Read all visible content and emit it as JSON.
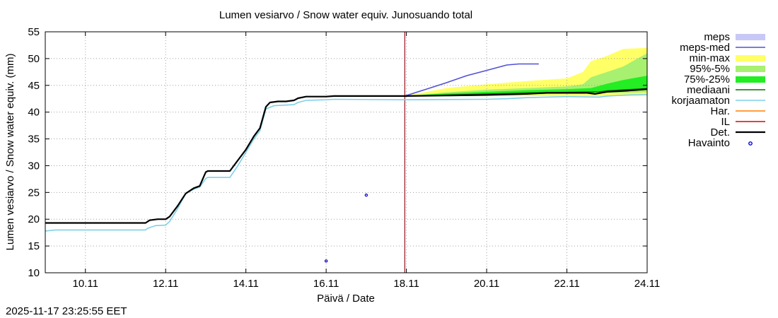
{
  "chart_data": {
    "type": "line",
    "title": "Lumen vesiarvo / Snow water equiv.  Junosuando total",
    "xlabel": "Päivä / Date",
    "ylabel": "Lumen vesiarvo / Snow water equiv. (mm)",
    "timestamp": "2025-11-17 23:25:55 EET",
    "x_unit": "days since 2025-11-09 00:00",
    "xlim": [
      0,
      15
    ],
    "ylim": [
      10,
      55
    ],
    "x_ticks": [
      {
        "x": 1,
        "label": "10.11"
      },
      {
        "x": 3,
        "label": "12.11"
      },
      {
        "x": 5,
        "label": "14.11"
      },
      {
        "x": 7,
        "label": "16.11"
      },
      {
        "x": 9,
        "label": "18.11"
      },
      {
        "x": 11,
        "label": "20.11"
      },
      {
        "x": 13,
        "label": "22.11"
      },
      {
        "x": 15,
        "label": "24.11"
      }
    ],
    "y_ticks": [
      10,
      15,
      20,
      25,
      30,
      35,
      40,
      45,
      50,
      55
    ],
    "grid": true,
    "forecast_start_x": 8.96,
    "legend": [
      {
        "label": "meps",
        "color": "#c8c8f8",
        "kind": "box"
      },
      {
        "label": "meps-med",
        "color": "#5050d8",
        "kind": "line"
      },
      {
        "label": "min-max",
        "color": "#ffff66",
        "kind": "box"
      },
      {
        "label": "95%-5%",
        "color": "#a8f070",
        "kind": "box"
      },
      {
        "label": "75%-25%",
        "color": "#22ee22",
        "kind": "box"
      },
      {
        "label": "mediaani",
        "color": "#007000",
        "kind": "line"
      },
      {
        "label": "korjaamaton",
        "color": "#7ed0e8",
        "kind": "line"
      },
      {
        "label": "Har.",
        "color": "#ff8000",
        "kind": "line"
      },
      {
        "label": "IL",
        "color": "#e00000",
        "kind": "line"
      },
      {
        "label": "Det.",
        "color": "#000000",
        "kind": "line"
      },
      {
        "label": "Havainto",
        "color": "#0000cc",
        "kind": "marker"
      }
    ],
    "bands": [
      {
        "name": "min-max",
        "color": "#ffff66",
        "x": [
          8.96,
          10,
          11,
          12,
          13,
          13.4,
          13.6,
          14,
          14.4,
          15
        ],
        "lower": [
          43,
          43,
          43,
          43,
          43,
          43,
          43,
          43,
          43,
          43
        ],
        "upper": [
          43,
          44.5,
          45.2,
          45.8,
          46.3,
          47.5,
          49.5,
          50.5,
          51.8,
          52
        ]
      },
      {
        "name": "95%-5%",
        "color": "#a8f070",
        "x": [
          8.96,
          10,
          11,
          12,
          13,
          13.4,
          13.6,
          14,
          14.4,
          15
        ],
        "lower": [
          43,
          43,
          43.2,
          43.3,
          43.4,
          43.4,
          43.5,
          43.6,
          43.6,
          43.7
        ],
        "upper": [
          43,
          43.7,
          44.2,
          44.5,
          44.8,
          45.2,
          46.5,
          47.5,
          48.5,
          51
        ]
      },
      {
        "name": "75%-25%",
        "color": "#22ee22",
        "x": [
          8.96,
          10,
          11,
          12,
          13,
          13.6,
          14,
          14.4,
          15
        ],
        "lower": [
          43,
          43.1,
          43.2,
          43.4,
          43.5,
          43.6,
          43.9,
          44,
          44.2
        ],
        "upper": [
          43,
          43.5,
          43.8,
          44.1,
          44.3,
          44.5,
          45.3,
          46,
          46.8
        ]
      }
    ],
    "series": [
      {
        "name": "korjaamaton",
        "color": "#7ed0e8",
        "width": 1.6,
        "points": [
          [
            0,
            17.8
          ],
          [
            0.25,
            18
          ],
          [
            2.5,
            18
          ],
          [
            2.55,
            18.3
          ],
          [
            2.75,
            18.8
          ],
          [
            3,
            18.9
          ],
          [
            3.1,
            19.6
          ],
          [
            3.3,
            22
          ],
          [
            3.5,
            24.8
          ],
          [
            3.7,
            25.6
          ],
          [
            3.85,
            26
          ],
          [
            4,
            27.6
          ],
          [
            4.05,
            27.8
          ],
          [
            4.6,
            27.8
          ],
          [
            4.8,
            30
          ],
          [
            5,
            32.5
          ],
          [
            5.2,
            35
          ],
          [
            5.35,
            36.5
          ],
          [
            5.5,
            40.6
          ],
          [
            5.7,
            41.2
          ],
          [
            6.2,
            41.4
          ],
          [
            6.3,
            41.8
          ],
          [
            6.5,
            42.2
          ],
          [
            7,
            42.3
          ],
          [
            7.2,
            42.4
          ],
          [
            9,
            42.3
          ],
          [
            11,
            42.4
          ],
          [
            11.5,
            42.5
          ],
          [
            12,
            42.7
          ],
          [
            12.5,
            42.8
          ],
          [
            13,
            42.9
          ],
          [
            13.8,
            42.8
          ],
          [
            14,
            43
          ],
          [
            14.5,
            43.2
          ],
          [
            15,
            43.3
          ]
        ]
      },
      {
        "name": "meps-med",
        "color": "#5050d8",
        "width": 1.6,
        "points": [
          [
            8.96,
            43
          ],
          [
            9.5,
            44.3
          ],
          [
            10,
            45.5
          ],
          [
            10.5,
            46.8
          ],
          [
            11,
            47.8
          ],
          [
            11.5,
            48.8
          ],
          [
            11.8,
            49
          ],
          [
            12.3,
            49
          ]
        ]
      },
      {
        "name": "mediaani",
        "color": "#007000",
        "width": 1.4,
        "points": [
          [
            8.96,
            43
          ],
          [
            10,
            43.2
          ],
          [
            11,
            43.4
          ],
          [
            12,
            43.6
          ],
          [
            13,
            43.7
          ],
          [
            13.8,
            43.8
          ],
          [
            14,
            44
          ],
          [
            14.5,
            44.2
          ],
          [
            15,
            44.4
          ]
        ]
      },
      {
        "name": "Det.",
        "color": "#000000",
        "width": 2.2,
        "points": [
          [
            0,
            19.3
          ],
          [
            2.5,
            19.3
          ],
          [
            2.6,
            19.8
          ],
          [
            2.8,
            20
          ],
          [
            3,
            20
          ],
          [
            3.1,
            20.5
          ],
          [
            3.3,
            22.5
          ],
          [
            3.5,
            24.8
          ],
          [
            3.7,
            25.8
          ],
          [
            3.85,
            26.2
          ],
          [
            4,
            28.8
          ],
          [
            4.05,
            29
          ],
          [
            4.6,
            29
          ],
          [
            4.8,
            31
          ],
          [
            5,
            33
          ],
          [
            5.2,
            35.5
          ],
          [
            5.35,
            37
          ],
          [
            5.5,
            41
          ],
          [
            5.6,
            41.8
          ],
          [
            5.8,
            42
          ],
          [
            6,
            42
          ],
          [
            6.2,
            42.2
          ],
          [
            6.3,
            42.6
          ],
          [
            6.5,
            42.9
          ],
          [
            7,
            42.9
          ],
          [
            7.2,
            43
          ],
          [
            8.96,
            43
          ],
          [
            10,
            43.1
          ],
          [
            11,
            43.2
          ],
          [
            11.5,
            43.3
          ],
          [
            12,
            43.4
          ],
          [
            12.5,
            43.6
          ],
          [
            13,
            43.6
          ],
          [
            13.5,
            43.6
          ],
          [
            13.7,
            43.4
          ],
          [
            14,
            43.8
          ],
          [
            14.5,
            44
          ],
          [
            15,
            44.3
          ]
        ]
      }
    ],
    "observations": [
      [
        7,
        12.2
      ],
      [
        8,
        24.5
      ]
    ]
  }
}
